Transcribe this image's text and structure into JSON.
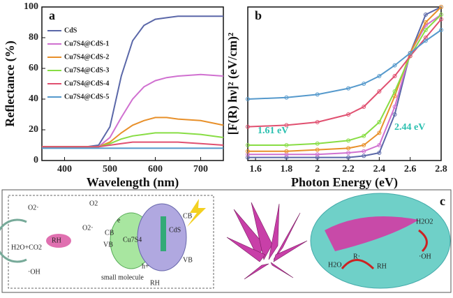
{
  "chart_data": [
    {
      "type": "line",
      "panel": "a",
      "x_label": "Wavelength (nm)",
      "y_label": "Reflectance (%)",
      "xlim": [
        350,
        750
      ],
      "xticks": [
        400,
        500,
        600,
        700
      ],
      "ylim": [
        0,
        100
      ],
      "yticks": [
        0,
        20,
        40,
        60,
        80,
        100
      ],
      "legend": "top-left",
      "x": [
        350,
        400,
        450,
        475,
        500,
        525,
        550,
        575,
        600,
        625,
        650,
        700,
        750
      ],
      "series": [
        {
          "name": "CdS",
          "color": "#5a67a8",
          "values": [
            9,
            9,
            9,
            10,
            22,
            55,
            78,
            88,
            92,
            93,
            94,
            94,
            94
          ]
        },
        {
          "name": "Cu7S4@CdS-1",
          "color": "#d070d0",
          "values": [
            9,
            9,
            9,
            9,
            15,
            28,
            40,
            48,
            52,
            54,
            55,
            56,
            55
          ]
        },
        {
          "name": "Cu7S4@CdS-2",
          "color": "#e8902a",
          "values": [
            9,
            9,
            9,
            9,
            12,
            18,
            23,
            26,
            28,
            28,
            27,
            26,
            23
          ]
        },
        {
          "name": "Cu7S4@CdS-3",
          "color": "#88dd44",
          "values": [
            9,
            9,
            9,
            9,
            11,
            14,
            16,
            17,
            18,
            18,
            18,
            17,
            15
          ]
        },
        {
          "name": "Cu7S4@CdS-4",
          "color": "#e05070",
          "values": [
            9,
            9,
            9,
            9,
            10,
            11,
            12,
            12,
            12,
            12,
            12,
            11,
            10
          ]
        },
        {
          "name": "Cu7S4@CdS-5",
          "color": "#5599cc",
          "values": [
            8,
            8,
            8,
            8,
            8,
            8,
            8,
            8,
            8,
            8,
            8,
            8,
            8
          ]
        }
      ]
    },
    {
      "type": "scatter",
      "panel": "b",
      "x_label": "Photon Energy (eV)",
      "y_label": "[F(R) hν]² (eV/cm)²",
      "xlim": [
        1.55,
        2.8
      ],
      "xticks": [
        1.6,
        1.8,
        2.0,
        2.2,
        2.4,
        2.6,
        2.8
      ],
      "ylim": [
        0,
        100
      ],
      "annotations": [
        "1.61 eV",
        "2.44 eV"
      ],
      "x": [
        1.55,
        1.8,
        2.0,
        2.2,
        2.3,
        2.4,
        2.5,
        2.6,
        2.7,
        2.8
      ],
      "series": [
        {
          "color": "#5a67a8",
          "values": [
            2,
            2,
            2,
            2,
            3,
            5,
            30,
            70,
            95,
            100
          ]
        },
        {
          "color": "#d070d0",
          "values": [
            4,
            4,
            4,
            5,
            6,
            10,
            35,
            70,
            88,
            95
          ]
        },
        {
          "color": "#e8902a",
          "values": [
            6,
            6,
            7,
            8,
            10,
            18,
            42,
            70,
            90,
            100
          ]
        },
        {
          "color": "#88dd44",
          "values": [
            10,
            10,
            11,
            13,
            16,
            25,
            45,
            68,
            85,
            95
          ]
        },
        {
          "color": "#e05070",
          "values": [
            22,
            23,
            25,
            30,
            35,
            45,
            55,
            68,
            80,
            92
          ]
        },
        {
          "color": "#5599cc",
          "values": [
            40,
            41,
            43,
            47,
            50,
            55,
            62,
            70,
            78,
            85
          ]
        }
      ]
    }
  ],
  "diagram": {
    "panel": "c",
    "labels": [
      "O2·",
      "RH",
      "H2O+CO2",
      "·OH",
      "O2",
      "O2·",
      "e",
      "CB",
      "VB",
      "Cu7S4",
      "CdS",
      "CB",
      "VB",
      "h+",
      "small molecule",
      "RH",
      "H2O2",
      "·OH",
      "H2O",
      "R·",
      "RH"
    ]
  }
}
